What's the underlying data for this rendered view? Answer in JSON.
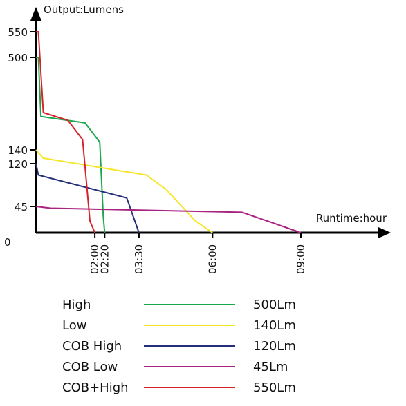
{
  "chart_data": {
    "type": "line",
    "ylabel": "Output:Lumens",
    "xlabel": "Runtime:hour",
    "y_ticks": [
      "550",
      "500",
      "140",
      "120",
      "45"
    ],
    "y_tick_values": [
      550,
      500,
      140,
      120,
      45
    ],
    "origin_label": "0",
    "x_ticks": [
      "02:00",
      "02:20",
      "03:30",
      "06:00",
      "09:00"
    ],
    "x_tick_values": [
      "02:00",
      "02:20",
      "03:30",
      "06:00",
      "09:00"
    ],
    "grid": false,
    "legend_position": "bottom",
    "series": [
      {
        "name": "High",
        "rating": "500Lm",
        "color": "#1aa64b",
        "points": [
          [
            "00:00",
            500
          ],
          [
            "00:05",
            500
          ],
          [
            "00:10",
            270
          ],
          [
            "01:40",
            245
          ],
          [
            "02:10",
            170
          ],
          [
            "02:17",
            30
          ],
          [
            "02:20",
            0
          ]
        ]
      },
      {
        "name": "Low",
        "rating": "140Lm",
        "color": "#f5e62a",
        "points": [
          [
            "00:00",
            140
          ],
          [
            "00:15",
            128
          ],
          [
            "03:45",
            100
          ],
          [
            "04:25",
            75
          ],
          [
            "05:25",
            20
          ],
          [
            "06:00",
            0
          ]
        ]
      },
      {
        "name": "COB High",
        "rating": "120Lm",
        "color": "#25307a",
        "points": [
          [
            "00:00",
            120
          ],
          [
            "00:05",
            100
          ],
          [
            "03:05",
            60
          ],
          [
            "03:30",
            0
          ]
        ]
      },
      {
        "name": "COB Low",
        "rating": "45Lm",
        "color": "#a8237f",
        "points": [
          [
            "00:00",
            45
          ],
          [
            "00:30",
            42
          ],
          [
            "07:00",
            35
          ],
          [
            "09:00",
            0
          ]
        ]
      },
      {
        "name": "COB+High",
        "rating": "550Lm",
        "color": "#d6222a",
        "points": [
          [
            "00:00",
            550
          ],
          [
            "00:05",
            550
          ],
          [
            "00:15",
            285
          ],
          [
            "01:05",
            255
          ],
          [
            "01:35",
            180
          ],
          [
            "01:50",
            20
          ],
          [
            "02:00",
            0
          ]
        ]
      }
    ]
  }
}
